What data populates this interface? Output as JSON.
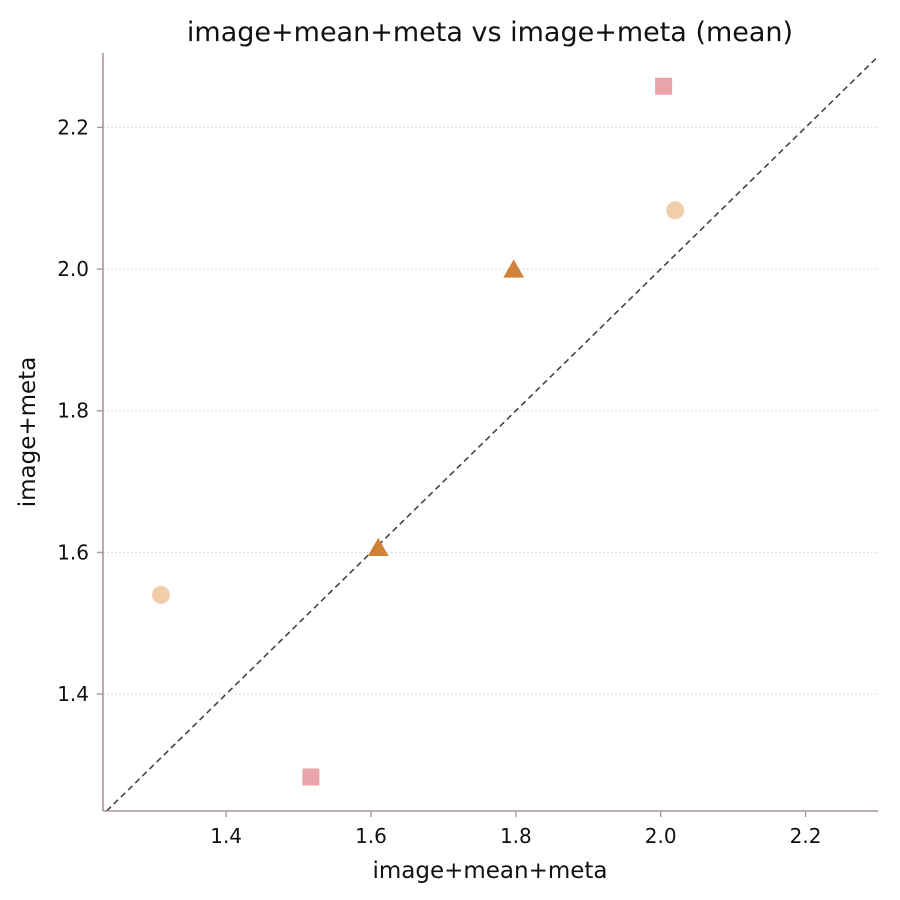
{
  "chart_data": {
    "type": "scatter",
    "title": "image+mean+meta vs image+meta (mean)",
    "xlabel": "image+mean+meta",
    "ylabel": "image+meta",
    "xlim": [
      1.23,
      2.3
    ],
    "ylim": [
      1.235,
      2.305
    ],
    "xticks": [
      1.4,
      1.6,
      1.8,
      2.0,
      2.2
    ],
    "yticks": [
      1.4,
      1.6,
      1.8,
      2.0,
      2.2
    ],
    "xtick_labels": [
      "1.4",
      "1.6",
      "1.8",
      "2.0",
      "2.2"
    ],
    "ytick_labels": [
      "1.4",
      "1.6",
      "1.8",
      "2.0",
      "2.2"
    ],
    "grid": "horizontal dotted",
    "reference_line": "y = x (dashed)",
    "series": [
      {
        "marker": "circle",
        "color": "#f0c9a0",
        "points": [
          {
            "x": 1.31,
            "y": 1.54
          },
          {
            "x": 2.02,
            "y": 2.083
          }
        ]
      },
      {
        "marker": "square",
        "color": "#e8a0a5",
        "points": [
          {
            "x": 1.517,
            "y": 1.283
          },
          {
            "x": 2.004,
            "y": 2.258
          }
        ]
      },
      {
        "marker": "triangle",
        "color": "#d07a2e",
        "points": [
          {
            "x": 1.61,
            "y": 1.605
          },
          {
            "x": 1.797,
            "y": 1.998
          }
        ]
      }
    ],
    "colors": {
      "axis": "#a89898",
      "grid": "#d0d0d0",
      "reference_line": "#444444"
    }
  }
}
